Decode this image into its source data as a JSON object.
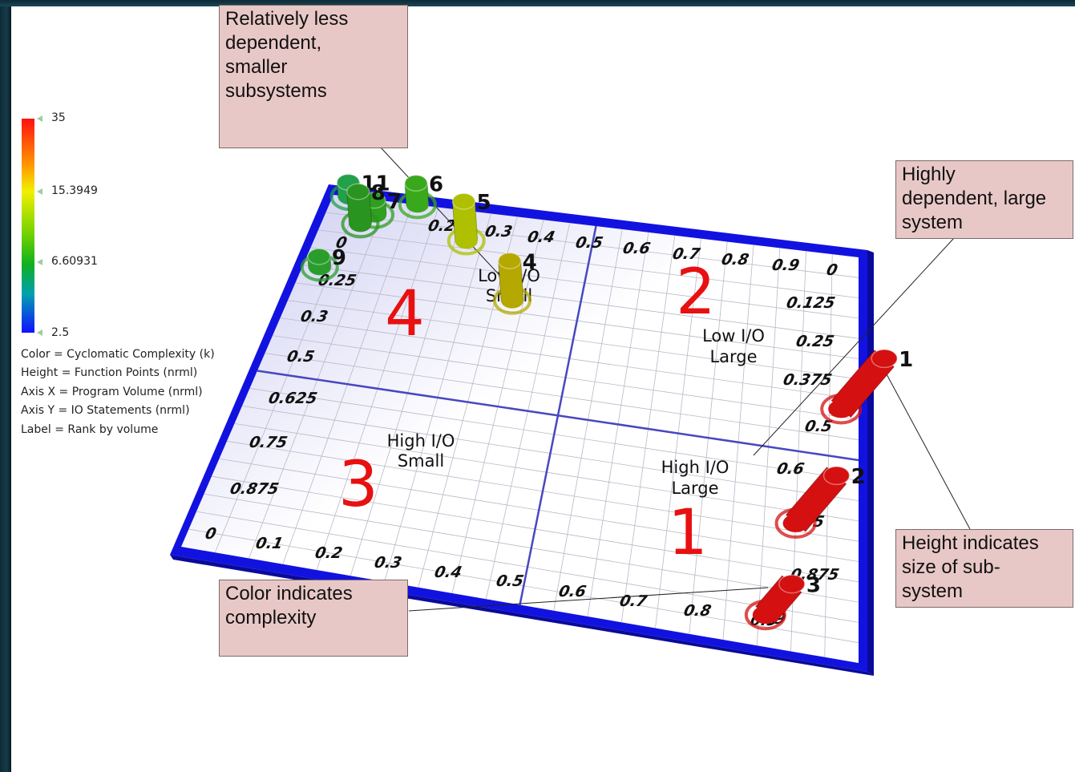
{
  "chart_data": {
    "type": "scatter",
    "title": "",
    "xlabel": "",
    "ylabel": "",
    "xlim": [
      0,
      1
    ],
    "ylim": [
      0,
      1
    ],
    "x_ticks": [
      "0",
      "0.1",
      "0.2",
      "0.3",
      "0.4",
      "0.5",
      "0.6",
      "0.7",
      "0.8",
      "0.9"
    ],
    "x_ticks_top": [
      "0.2",
      "0.3",
      "0.4",
      "0.5",
      "0.6",
      "0.7",
      "0.8",
      "0.9",
      "0"
    ],
    "y_ticks_left": [
      "0.25",
      "0.3",
      "0.5",
      "0.625",
      "0.75",
      "0.875",
      "0"
    ],
    "y_ticks_right": [
      "0.125",
      "0.25",
      "0.375",
      "0.5",
      "0.6",
      ".75",
      "0.875",
      ".9"
    ],
    "color_scale": {
      "min": 2.5,
      "max": 35,
      "ticks": [
        "35",
        "15.3949",
        "6.60931",
        "2.5"
      ]
    },
    "legend_lines": [
      "Color = Cyclomatic Complexity (k)",
      "Height = Function Points (nrml)",
      "Axis X = Program Volume (nrml)",
      "Axis Y = IO Statements (nrml)",
      "Label = Rank by volume"
    ],
    "quadrants": [
      {
        "number": "4",
        "label_line1": "Low I/O",
        "label_line2": "Small"
      },
      {
        "number": "2",
        "label_line1": "Low I/O",
        "label_line2": "Large"
      },
      {
        "number": "3",
        "label_line1": "High I/O",
        "label_line2": "Small"
      },
      {
        "number": "1",
        "label_line1": "High I/O",
        "label_line2": "Large"
      }
    ],
    "points": [
      {
        "rank": "1",
        "x": 0.97,
        "y": 0.38,
        "height": 0.9,
        "complexity": 35,
        "color": "#d41010"
      },
      {
        "rank": "2",
        "x": 0.9,
        "y": 0.68,
        "height": 0.85,
        "complexity": 33,
        "color": "#d41010"
      },
      {
        "rank": "3",
        "x": 0.86,
        "y": 0.92,
        "height": 0.55,
        "complexity": 31,
        "color": "#d41010"
      },
      {
        "rank": "4",
        "x": 0.38,
        "y": 0.22,
        "height": 0.55,
        "complexity": 17,
        "color": "#b5a800"
      },
      {
        "rank": "5",
        "x": 0.27,
        "y": 0.08,
        "height": 0.55,
        "complexity": 15,
        "color": "#aec000"
      },
      {
        "rank": "6",
        "x": 0.16,
        "y": 0.0,
        "height": 0.3,
        "complexity": 8,
        "color": "#3aa81c"
      },
      {
        "rank": "7",
        "x": 0.09,
        "y": 0.04,
        "height": 0.2,
        "complexity": 6.5,
        "color": "#2e9f1e"
      },
      {
        "rank": "8",
        "x": 0.07,
        "y": 0.07,
        "height": 0.45,
        "complexity": 6,
        "color": "#2a9420"
      },
      {
        "rank": "9",
        "x": 0.03,
        "y": 0.2,
        "height": 0.15,
        "complexity": 5.5,
        "color": "#2a9e2c"
      },
      {
        "rank": "11",
        "x": 0.03,
        "y": 0.0,
        "height": 0.2,
        "complexity": 4,
        "color": "#22a04a"
      }
    ]
  },
  "annotations": {
    "top": "Relatively less\ndependent,\nsmaller\nsubsystems",
    "right_top": "Highly\ndependent, large\nsystem",
    "right_bottom": "Height indicates\nsize of sub-\nsystem",
    "bottom": "Color indicates\ncomplexity"
  },
  "colors": {
    "frame": "#1212e0",
    "quadrant_number": "#e81010",
    "divider": "#4848c0",
    "note_bg": "#e8c8c6"
  }
}
